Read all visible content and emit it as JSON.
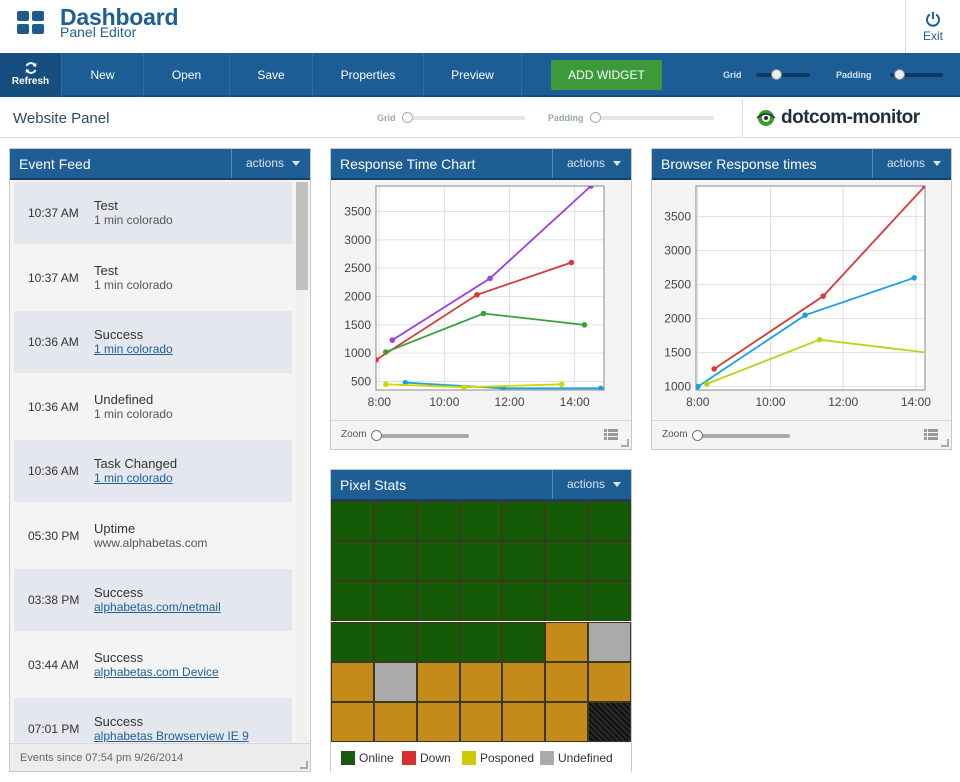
{
  "header": {
    "title": "Dashboard",
    "subtitle": "Panel Editor",
    "exit_label": "Exit"
  },
  "toolbar": {
    "refresh_label": "Refresh",
    "items": [
      "New",
      "Open",
      "Save",
      "Properties",
      "Preview"
    ],
    "add_widget_label": "ADD WIDGET",
    "grid_label": "Grid",
    "padding_label": "Padding"
  },
  "panelbar": {
    "panel_name": "Website Panel",
    "grid_label": "Grid",
    "padding_label": "Padding",
    "brand": "dotcom-monitor"
  },
  "colors": {
    "primary": "#1f5d95",
    "add_green": "#3d9a3a",
    "online": "#1a6600",
    "down": "#d9302c",
    "postponed": "#cccc00",
    "undefined": "#aaaaaa",
    "amber": "#c48b1a"
  },
  "event_feed": {
    "title": "Event Feed",
    "actions_label": "actions",
    "events": [
      {
        "time": "10:37 AM",
        "status": "Test",
        "detail": "1 min colorado",
        "link": false
      },
      {
        "time": "10:37 AM",
        "status": "Test",
        "detail": "1 min colorado",
        "link": false
      },
      {
        "time": "10:36 AM",
        "status": "Success",
        "detail": "1 min colorado",
        "link": true
      },
      {
        "time": "10:36 AM",
        "status": "Undefined",
        "detail": "1 min colorado",
        "link": false
      },
      {
        "time": "10:36 AM",
        "status": "Task Changed",
        "detail": "1 min colorado",
        "link": true
      },
      {
        "time": "05:30 PM",
        "status": "Uptime",
        "detail": "www.alphabetas.com",
        "link": false
      },
      {
        "time": "03:38 PM",
        "status": "Success",
        "detail": "alphabetas.com/netmail",
        "link": true
      },
      {
        "time": "03:44 AM",
        "status": "Success",
        "detail": "alphabetas.com Device",
        "link": true
      },
      {
        "time": "07:01 PM",
        "status": "Success",
        "detail": "alphabetas Browserview IE 9",
        "link": true
      }
    ],
    "footer": "Events since 07:54 pm 9/26/2014"
  },
  "response_widget": {
    "title": "Response Time Chart",
    "actions_label": "actions",
    "zoom_label": "Zoom"
  },
  "browser_widget": {
    "title": "Browser Response times",
    "actions_label": "actions",
    "zoom_label": "Zoom"
  },
  "pixel_widget": {
    "title": "Pixel Stats",
    "actions_label": "actions",
    "grid_rows": [
      [
        "online",
        "online",
        "online",
        "online",
        "online",
        "online",
        "online"
      ],
      [
        "online",
        "online",
        "online",
        "online",
        "online",
        "online",
        "online"
      ],
      [
        "online",
        "online",
        "online",
        "online",
        "online",
        "online",
        "online"
      ],
      [
        "online",
        "online",
        "online",
        "online",
        "online",
        "amber",
        "undefined"
      ],
      [
        "amber",
        "undefined",
        "amber",
        "amber",
        "amber",
        "amber",
        "amber"
      ],
      [
        "amber",
        "amber",
        "amber",
        "amber",
        "amber",
        "amber",
        "dark"
      ]
    ],
    "legend": [
      {
        "label": "Online",
        "color": "#1a5a10"
      },
      {
        "label": "Down",
        "color": "#d9302c"
      },
      {
        "label": "Posponed",
        "color": "#cccc00"
      },
      {
        "label": "Undefined",
        "color": "#aaaaaa"
      }
    ]
  },
  "chart_data": [
    {
      "type": "line",
      "title": "Response Time Chart",
      "xlabel": "",
      "ylabel": "",
      "xlim": [
        7.9,
        14.9
      ],
      "ylim": [
        350,
        3950
      ],
      "x_ticks": [
        "8:00",
        "10:00",
        "12:00",
        "14:00"
      ],
      "x_tick_values": [
        8,
        10,
        12,
        14
      ],
      "y_ticks": [
        500,
        1000,
        1500,
        2000,
        2500,
        3000,
        3500
      ],
      "series": [
        {
          "name": "purple",
          "color": "#9b3fe0",
          "x": [
            8.4,
            11.4,
            14.5
          ],
          "y": [
            1230,
            2320,
            3950
          ]
        },
        {
          "name": "red",
          "color": "#d63a3a",
          "x": [
            7.9,
            11.0,
            13.9
          ],
          "y": [
            880,
            2030,
            2600
          ]
        },
        {
          "name": "green",
          "color": "#3aa03a",
          "x": [
            8.2,
            11.2,
            14.3
          ],
          "y": [
            1020,
            1700,
            1500
          ]
        },
        {
          "name": "blue",
          "color": "#1aa3e0",
          "x": [
            8.8,
            11.8,
            14.8
          ],
          "y": [
            480,
            380,
            380
          ]
        },
        {
          "name": "yellow",
          "color": "#d4d400",
          "x": [
            8.2,
            10.6,
            13.6
          ],
          "y": [
            450,
            400,
            450
          ]
        }
      ]
    },
    {
      "type": "line",
      "title": "Browser Response times",
      "xlabel": "",
      "ylabel": "",
      "xlim": [
        7.95,
        14.25
      ],
      "ylim": [
        950,
        3950
      ],
      "x_ticks": [
        "8:00",
        "10:00",
        "12:00",
        "14:00"
      ],
      "x_tick_values": [
        8,
        10,
        12,
        14
      ],
      "y_ticks": [
        1000,
        1500,
        2000,
        2500,
        3000,
        3500
      ],
      "series": [
        {
          "name": "red",
          "color": "#d63a3a",
          "x": [
            8.45,
            11.45,
            14.25
          ],
          "y": [
            1260,
            2330,
            3950
          ]
        },
        {
          "name": "blue",
          "color": "#1aa3e0",
          "x": [
            8.0,
            10.95,
            13.95
          ],
          "y": [
            1000,
            2050,
            2600
          ]
        },
        {
          "name": "yellow",
          "color": "#b9d41a",
          "x": [
            8.25,
            11.35,
            14.3
          ],
          "y": [
            1040,
            1690,
            1500
          ]
        }
      ]
    }
  ]
}
